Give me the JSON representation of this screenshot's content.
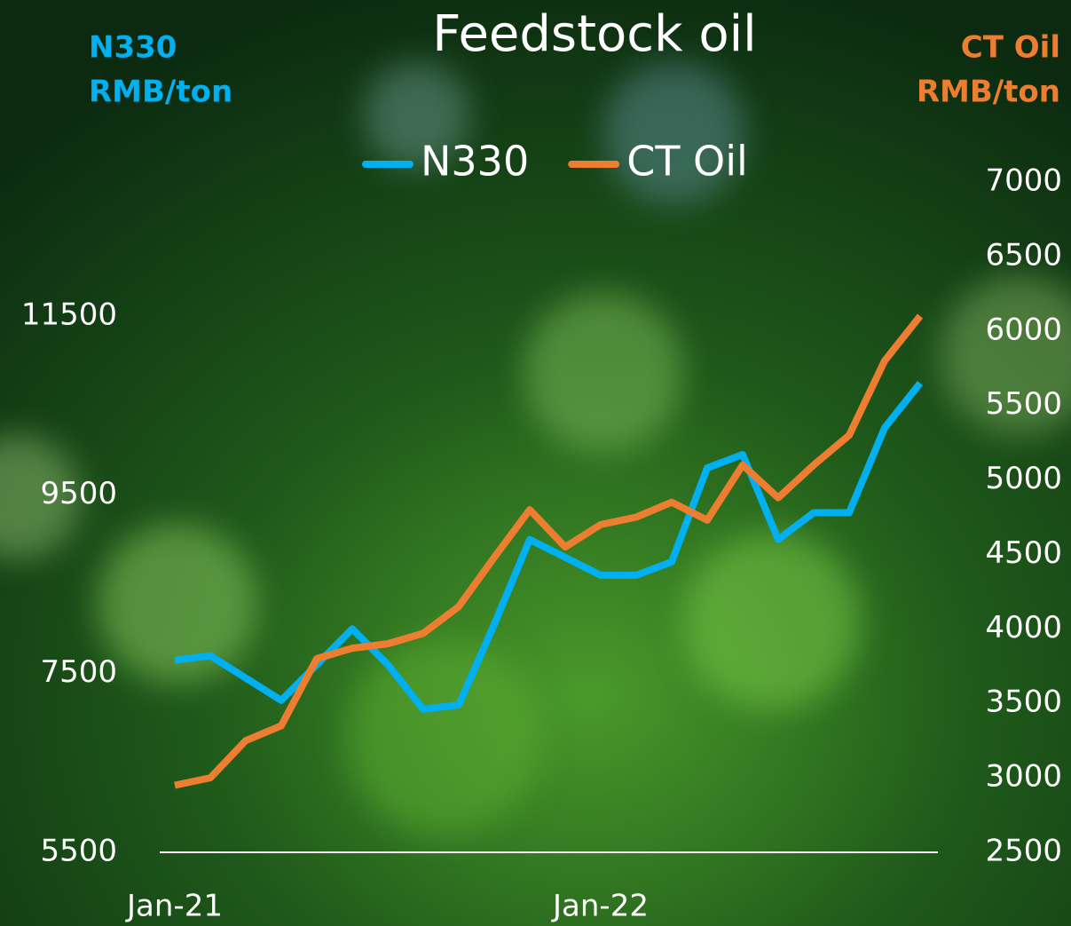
{
  "chart_data": {
    "type": "line",
    "title": "Feedstock oil",
    "ylabel": [
      "N330",
      "RMB/ton"
    ],
    "y2label": [
      "CT Oil",
      "RMB/ton"
    ],
    "categories": [
      "Jan-21",
      null,
      null,
      null,
      null,
      null,
      null,
      null,
      null,
      null,
      null,
      null,
      "Jan-22",
      null,
      null,
      null,
      null,
      null,
      null,
      null,
      null,
      null
    ],
    "series": [
      {
        "name": "N330",
        "color": "#00b0f0",
        "values": [
          7650,
          7700,
          7450,
          7200,
          7600,
          8000,
          7600,
          7100,
          7150,
          8050,
          9000,
          8800,
          8600,
          8600,
          8750,
          9800,
          9950,
          9000,
          9300,
          9300,
          10250,
          10750
        ]
      },
      {
        "name": "CT Oil",
        "color": "#ed7d31",
        "axis": "y2",
        "values": [
          2950,
          3000,
          3250,
          3350,
          3800,
          3870,
          3900,
          3970,
          4150,
          4480,
          4800,
          4550,
          4700,
          4750,
          4850,
          4730,
          5100,
          4880,
          5100,
          5300,
          5800,
          6100
        ]
      }
    ],
    "ylim": [
      5500,
      13000
    ],
    "yticks": [
      5500,
      7500,
      9500,
      11500
    ],
    "y2lim": [
      2500,
      7000
    ],
    "y2ticks": [
      2500,
      3000,
      3500,
      4000,
      4500,
      5000,
      5500,
      6000,
      6500,
      7000
    ],
    "legend": "top"
  }
}
